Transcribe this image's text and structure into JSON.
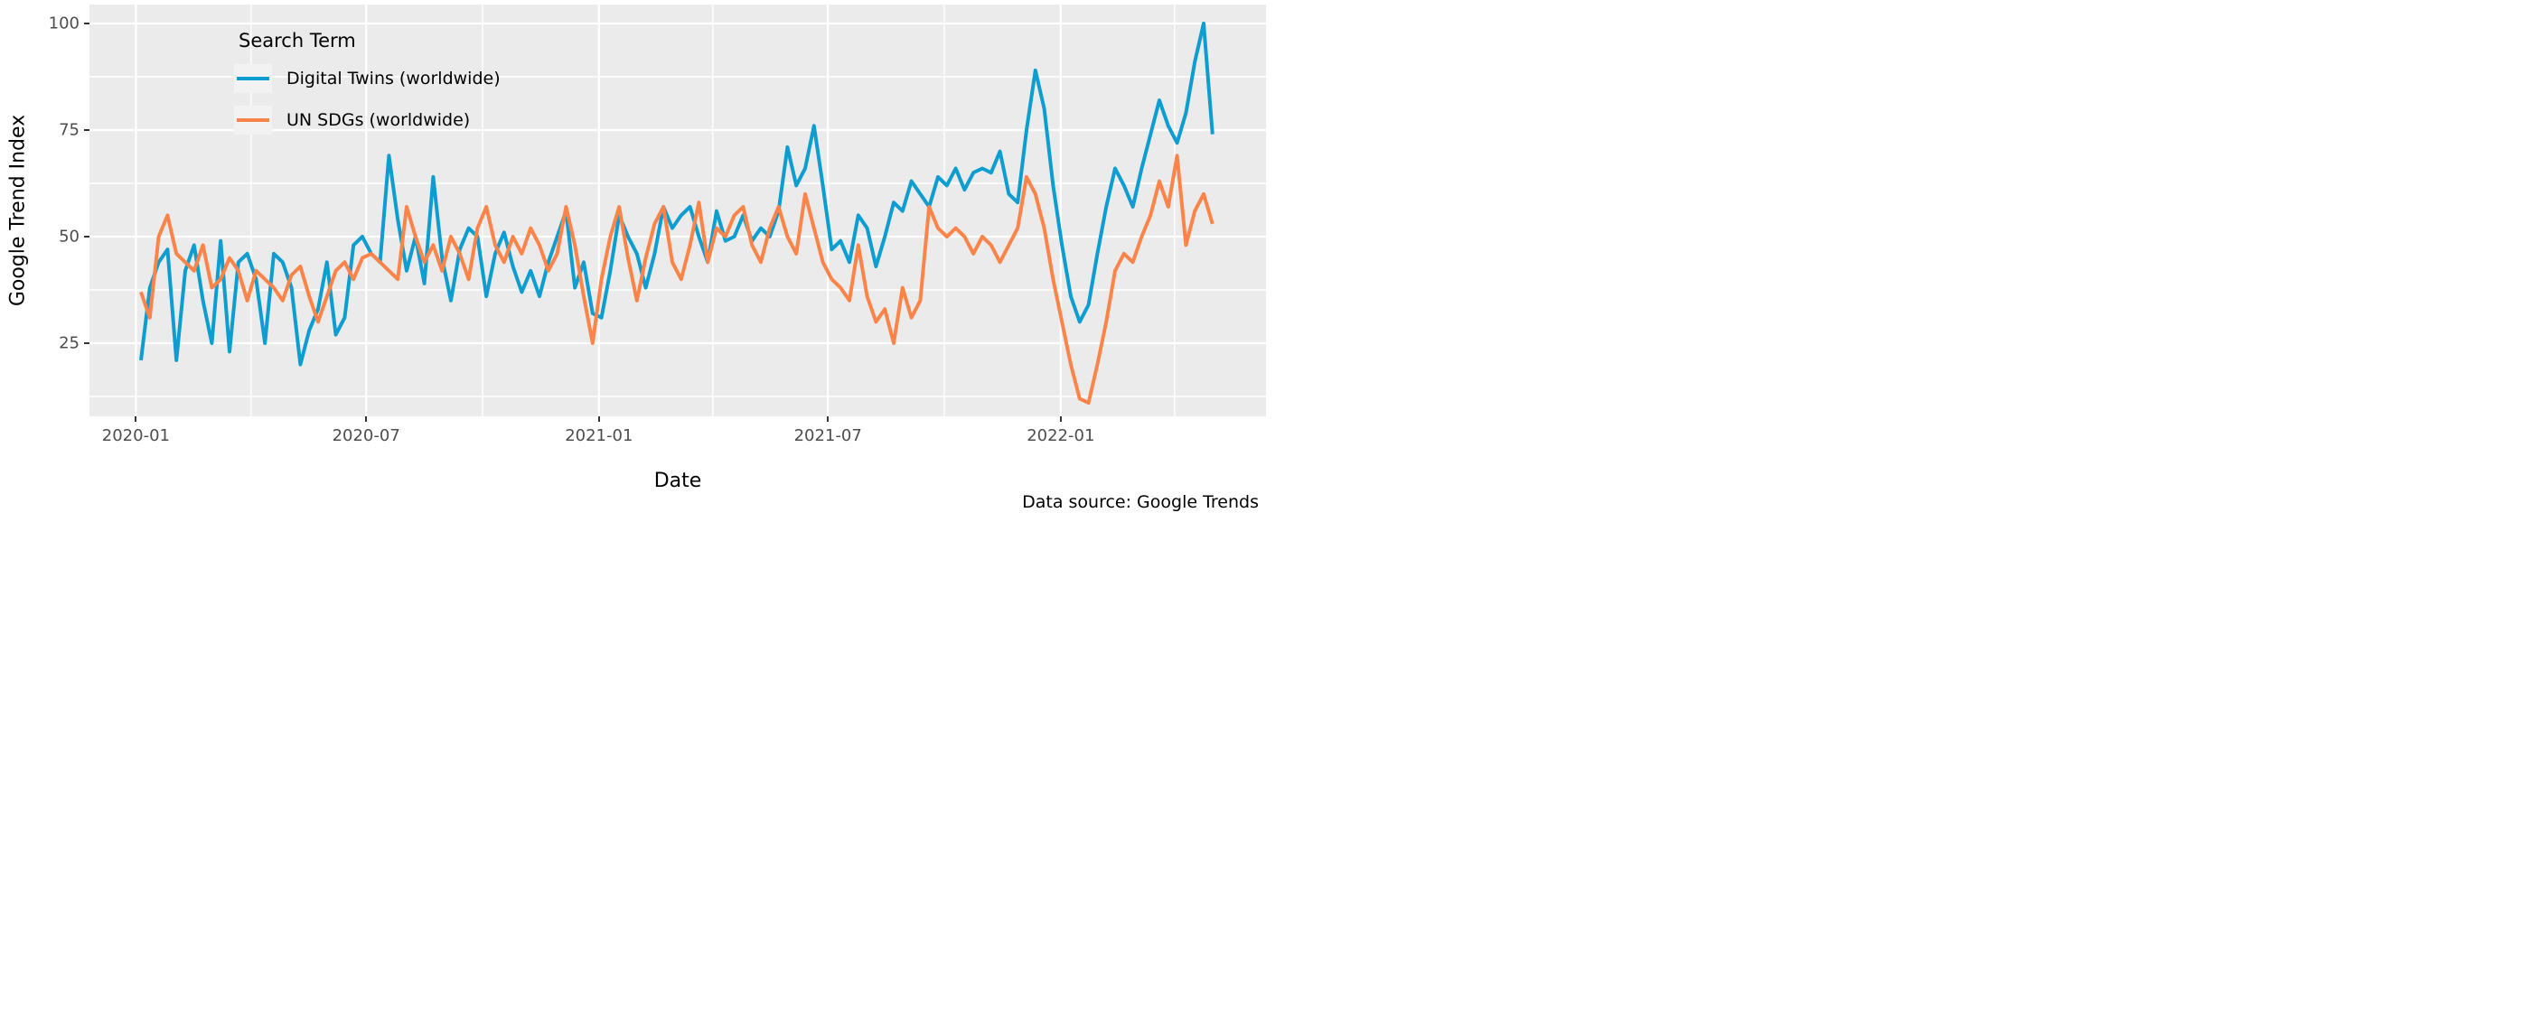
{
  "y_axis": {
    "title": "Google Trend Index",
    "ticks": [
      100,
      75,
      50,
      25
    ],
    "minor": [
      87.5,
      62.5,
      37.5,
      12.5
    ],
    "range": [
      8,
      104.5
    ]
  },
  "x_axis": {
    "title": "Date",
    "major_ticks": [
      {
        "label": "2020-01",
        "date": "2020-01-01"
      },
      {
        "label": "2020-07",
        "date": "2020-07-01"
      },
      {
        "label": "2021-01",
        "date": "2021-01-01"
      },
      {
        "label": "2021-07",
        "date": "2021-07-01"
      },
      {
        "label": "2022-01",
        "date": "2022-01-01"
      }
    ],
    "minor_dates": [
      "2020-04-01",
      "2020-10-01",
      "2021-04-01",
      "2021-10-01",
      "2022-04-01"
    ]
  },
  "legend": {
    "title": "Search Term",
    "entries": [
      {
        "label": "Digital Twins (worldwide)",
        "color": "#0E9DD0"
      },
      {
        "label": "UN SDGs (worldwide)",
        "color": "#FC8449"
      }
    ]
  },
  "caption": "Data source: Google Trends",
  "colors": {
    "panel_background": "#EBEBEB",
    "gridline": "#FFFFFF",
    "tick_text": "#4D4D4D",
    "series_blue": "#0E9DD0",
    "series_orange": "#FC8449"
  },
  "chart_data": {
    "type": "line",
    "title": "",
    "xlabel": "Date",
    "ylabel": "Google Trend Index",
    "ylim": [
      8,
      104.5
    ],
    "grid": "on",
    "legend_position": "top-left-inside",
    "x": [
      "2020-01-05",
      "2020-01-12",
      "2020-01-19",
      "2020-01-26",
      "2020-02-02",
      "2020-02-09",
      "2020-02-16",
      "2020-02-23",
      "2020-03-01",
      "2020-03-08",
      "2020-03-15",
      "2020-03-22",
      "2020-03-29",
      "2020-04-05",
      "2020-04-12",
      "2020-04-19",
      "2020-04-26",
      "2020-05-03",
      "2020-05-10",
      "2020-05-17",
      "2020-05-24",
      "2020-05-31",
      "2020-06-07",
      "2020-06-14",
      "2020-06-21",
      "2020-06-28",
      "2020-07-05",
      "2020-07-12",
      "2020-07-19",
      "2020-07-26",
      "2020-08-02",
      "2020-08-09",
      "2020-08-16",
      "2020-08-23",
      "2020-08-30",
      "2020-09-06",
      "2020-09-13",
      "2020-09-20",
      "2020-09-27",
      "2020-10-04",
      "2020-10-11",
      "2020-10-18",
      "2020-10-25",
      "2020-11-01",
      "2020-11-08",
      "2020-11-15",
      "2020-11-22",
      "2020-11-29",
      "2020-12-06",
      "2020-12-13",
      "2020-12-20",
      "2020-12-27",
      "2021-01-03",
      "2021-01-10",
      "2021-01-17",
      "2021-01-24",
      "2021-01-31",
      "2021-02-07",
      "2021-02-14",
      "2021-02-21",
      "2021-02-28",
      "2021-03-07",
      "2021-03-14",
      "2021-03-21",
      "2021-03-28",
      "2021-04-04",
      "2021-04-11",
      "2021-04-18",
      "2021-04-25",
      "2021-05-02",
      "2021-05-09",
      "2021-05-16",
      "2021-05-23",
      "2021-05-30",
      "2021-06-06",
      "2021-06-13",
      "2021-06-20",
      "2021-06-27",
      "2021-07-04",
      "2021-07-11",
      "2021-07-18",
      "2021-07-25",
      "2021-08-01",
      "2021-08-08",
      "2021-08-15",
      "2021-08-22",
      "2021-08-29",
      "2021-09-05",
      "2021-09-12",
      "2021-09-19",
      "2021-09-26",
      "2021-10-03",
      "2021-10-10",
      "2021-10-17",
      "2021-10-24",
      "2021-10-31",
      "2021-11-07",
      "2021-11-14",
      "2021-11-21",
      "2021-11-28",
      "2021-12-05",
      "2021-12-12",
      "2021-12-19",
      "2021-12-26",
      "2022-01-02",
      "2022-01-09",
      "2022-01-16",
      "2022-01-23",
      "2022-01-30",
      "2022-02-06",
      "2022-02-13",
      "2022-02-20",
      "2022-02-27",
      "2022-03-06",
      "2022-03-13",
      "2022-03-20",
      "2022-03-27",
      "2022-04-03",
      "2022-04-10",
      "2022-04-17",
      "2022-04-24",
      "2022-05-01"
    ],
    "series": [
      {
        "name": "Digital Twins (worldwide)",
        "color": "#0E9DD0",
        "values": [
          21,
          38,
          44,
          47,
          21,
          42,
          48,
          35,
          25,
          49,
          23,
          44,
          46,
          40,
          25,
          46,
          44,
          38,
          20,
          28,
          33,
          44,
          27,
          31,
          48,
          50,
          46,
          44,
          69,
          54,
          42,
          50,
          39,
          64,
          45,
          35,
          47,
          52,
          50,
          36,
          46,
          51,
          43,
          37,
          42,
          36,
          44,
          50,
          56,
          38,
          44,
          32,
          31,
          42,
          55,
          50,
          46,
          38,
          46,
          57,
          52,
          55,
          57,
          50,
          44,
          56,
          49,
          50,
          55,
          49,
          52,
          50,
          56,
          71,
          62,
          66,
          76,
          62,
          47,
          49,
          44,
          55,
          52,
          43,
          50,
          58,
          56,
          63,
          60,
          57,
          64,
          62,
          66,
          61,
          65,
          66,
          65,
          70,
          60,
          58,
          75,
          89,
          80,
          62,
          48,
          36,
          30,
          34,
          46,
          57,
          66,
          62,
          57,
          66,
          74,
          82,
          76,
          72,
          79,
          91,
          100,
          74
        ]
      },
      {
        "name": "UN SDGs (worldwide)",
        "color": "#FC8449",
        "values": [
          37,
          31,
          50,
          55,
          46,
          44,
          42,
          48,
          38,
          40,
          45,
          42,
          35,
          42,
          40,
          38,
          35,
          41,
          43,
          36,
          30,
          36,
          42,
          44,
          40,
          45,
          46,
          44,
          42,
          40,
          57,
          50,
          44,
          48,
          42,
          50,
          46,
          40,
          52,
          57,
          48,
          44,
          50,
          46,
          52,
          48,
          42,
          46,
          57,
          48,
          36,
          25,
          40,
          50,
          57,
          45,
          35,
          45,
          53,
          57,
          44,
          40,
          48,
          58,
          44,
          52,
          50,
          55,
          57,
          48,
          44,
          52,
          57,
          50,
          46,
          60,
          52,
          44,
          40,
          38,
          35,
          48,
          36,
          30,
          33,
          25,
          38,
          31,
          35,
          57,
          52,
          50,
          52,
          50,
          46,
          50,
          48,
          44,
          48,
          52,
          64,
          60,
          52,
          40,
          30,
          20,
          12,
          11,
          20,
          30,
          42,
          46,
          44,
          50,
          55,
          63,
          57,
          69,
          48,
          56,
          60,
          53
        ]
      }
    ]
  }
}
